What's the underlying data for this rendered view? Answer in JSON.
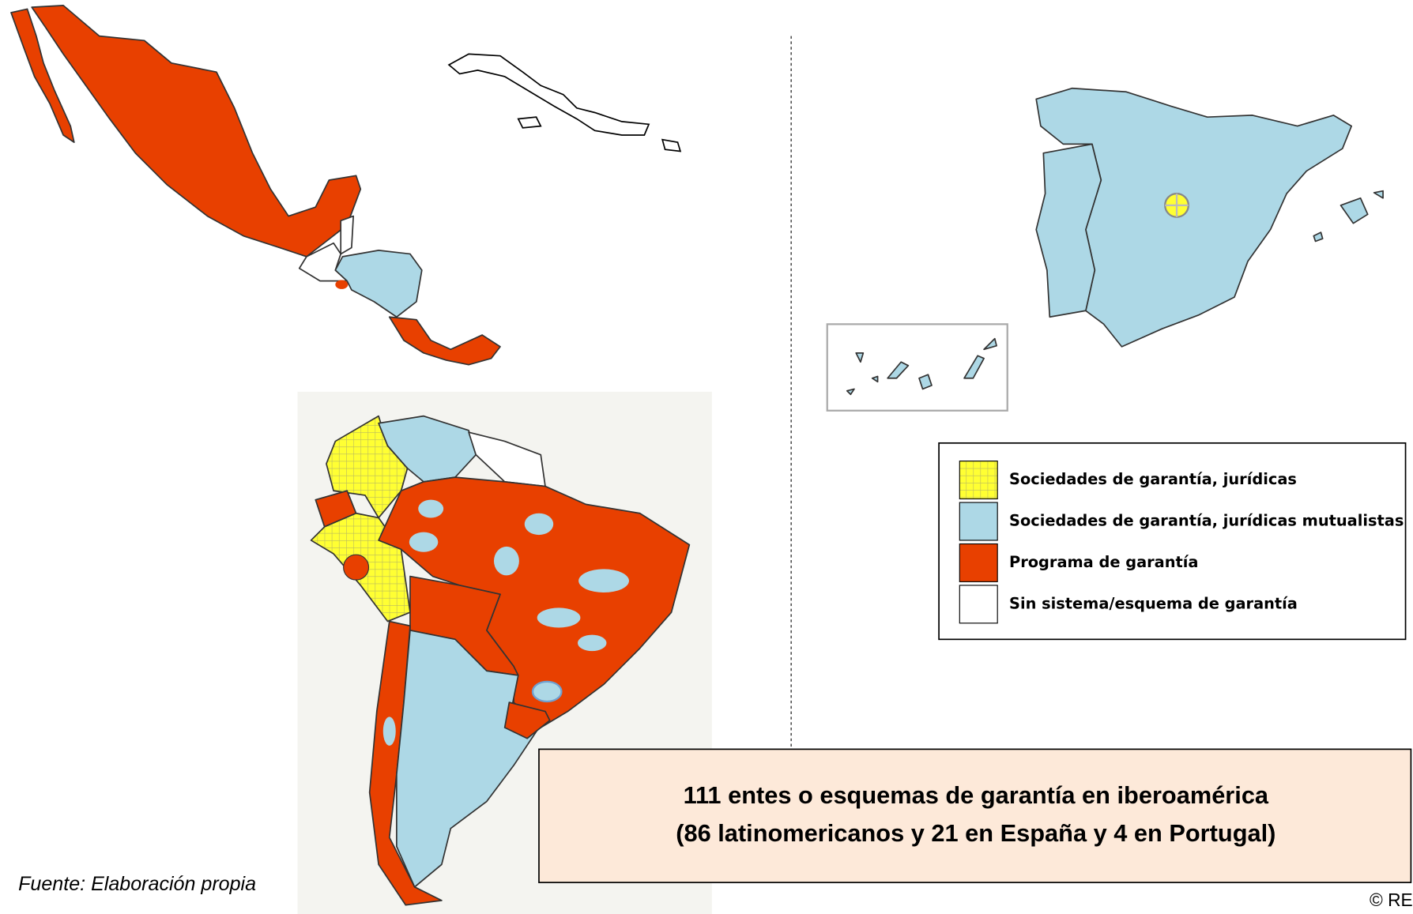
{
  "legend": {
    "items": [
      {
        "label": "Sociedades de garantía, jurídicas",
        "color": "#ffff33"
      },
      {
        "label": "Sociedades de garantía, jurídicas mutualistas",
        "color": "#add8e6"
      },
      {
        "label": "Programa de garantía",
        "color": "#e84000"
      },
      {
        "label": "Sin sistema/esquema de garantía",
        "color": "#ffffff"
      }
    ]
  },
  "summary": {
    "lines": [
      "111 entes o esquemas de garantía en iberoamérica",
      "(86 latinomericanos y 21 en España y 4 en Portugal)"
    ]
  },
  "source": "Fuente: Elaboración propia",
  "copyright": "© RE"
}
